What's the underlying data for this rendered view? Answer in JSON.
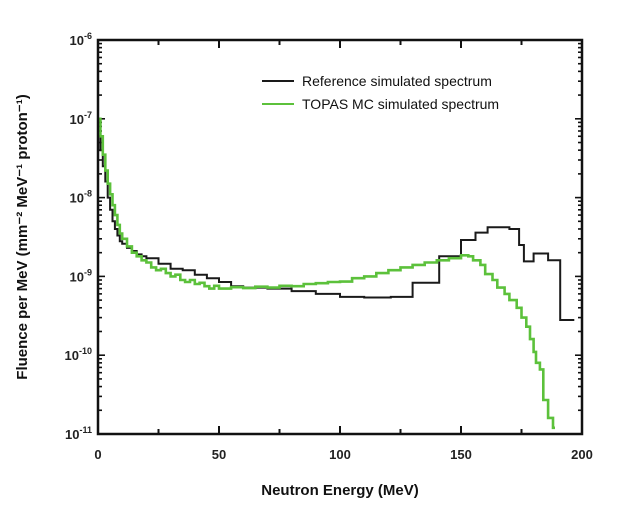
{
  "chart_data": {
    "type": "line",
    "step": true,
    "xlabel": "Neutron Energy (MeV)",
    "ylabel": "Fluence per MeV (mm⁻² MeV⁻¹ proton⁻¹)",
    "xlim": [
      0,
      200
    ],
    "ylim": [
      1e-11,
      1e-06
    ],
    "yscale": "log",
    "grid": false,
    "legend_position": "top-right",
    "x_ticks": [
      0,
      50,
      100,
      150,
      200
    ],
    "x_tick_labels": [
      "0",
      "50",
      "100",
      "150",
      "200"
    ],
    "y_ticks": [
      1e-06,
      1e-07,
      1e-08,
      1e-09,
      1e-10,
      1e-11
    ],
    "y_tick_labels": [
      {
        "base": "10",
        "exp": "-6"
      },
      {
        "base": "10",
        "exp": "-7"
      },
      {
        "base": "10",
        "exp": "-8"
      },
      {
        "base": "10",
        "exp": "-9"
      },
      {
        "base": "10",
        "exp": "-10"
      },
      {
        "base": "10",
        "exp": "-11"
      }
    ],
    "series": [
      {
        "name": "Reference simulated spectrum",
        "color": "#1a1a1a",
        "x": [
          0,
          1,
          2,
          3,
          4,
          5,
          6,
          7,
          8,
          9,
          10,
          12,
          14,
          16,
          18,
          20,
          25,
          30,
          35,
          40,
          45,
          50,
          55,
          60,
          70,
          80,
          90,
          100,
          110,
          121,
          130,
          141,
          150,
          156,
          161,
          170,
          174,
          176,
          180,
          186,
          191,
          196
        ],
        "y": [
          6e-08,
          4e-08,
          2.5e-08,
          1.6e-08,
          1e-08,
          7e-09,
          5e-09,
          4e-09,
          3.3e-09,
          2.8e-09,
          2.6e-09,
          2.3e-09,
          2.1e-09,
          1.9e-09,
          1.8e-09,
          1.7e-09,
          1.45e-09,
          1.25e-09,
          1.2e-09,
          1.05e-09,
          9.5e-10,
          8.5e-10,
          7.5e-10,
          7.2e-10,
          7e-10,
          6.5e-10,
          6e-10,
          5.5e-10,
          5.4e-10,
          5.5e-10,
          8.3e-10,
          1.8e-09,
          2.9e-09,
          3.6e-09,
          4.2e-09,
          4e-09,
          2.5e-09,
          1.55e-09,
          1.95e-09,
          1.6e-09,
          2.8e-10,
          2.8e-10
        ]
      },
      {
        "name": "TOPAS MC simulated spectrum",
        "color": "#5cc13b",
        "x": [
          0,
          1,
          2,
          3,
          4,
          5,
          6,
          7,
          8,
          9,
          10,
          12,
          14,
          16,
          18,
          20,
          22,
          24,
          26,
          28,
          30,
          32,
          34,
          36,
          38,
          40,
          42,
          44,
          46,
          48,
          50,
          55,
          60,
          65,
          70,
          75,
          80,
          85,
          90,
          95,
          100,
          105,
          110,
          115,
          120,
          125,
          130,
          135,
          140,
          145,
          150,
          153,
          155,
          158,
          160,
          163,
          165,
          168,
          170,
          173,
          175,
          177,
          178.5,
          180,
          181,
          182.6,
          184,
          186,
          188
        ],
        "y": [
          1e-07,
          6e-08,
          3.5e-08,
          2.2e-08,
          1.5e-08,
          1.1e-08,
          8e-09,
          6e-09,
          4.5e-09,
          3.5e-09,
          3e-09,
          2.4e-09,
          2e-09,
          1.8e-09,
          1.6e-09,
          1.5e-09,
          1.3e-09,
          1.2e-09,
          1.25e-09,
          1.1e-09,
          1e-09,
          1.05e-09,
          9e-10,
          8.5e-10,
          9e-10,
          8e-10,
          8.3e-10,
          7.5e-10,
          7e-10,
          7.6e-10,
          7e-10,
          7.3e-10,
          7.1e-10,
          7.4e-10,
          7.2e-10,
          7.6e-10,
          7.5e-10,
          8e-10,
          8.2e-10,
          8.5e-10,
          8.6e-10,
          9.5e-10,
          1e-09,
          1.1e-09,
          1.2e-09,
          1.3e-09,
          1.4e-09,
          1.5e-09,
          1.6e-09,
          1.7e-09,
          1.85e-09,
          1.8e-09,
          1.6e-09,
          1.4e-09,
          1.07e-09,
          9e-10,
          7.2e-10,
          6e-10,
          5e-10,
          4e-10,
          3e-10,
          2.3e-10,
          1.6e-10,
          1.1e-10,
          8e-11,
          6.6e-11,
          2.7e-11,
          1.6e-11,
          1.2e-11
        ]
      }
    ]
  }
}
